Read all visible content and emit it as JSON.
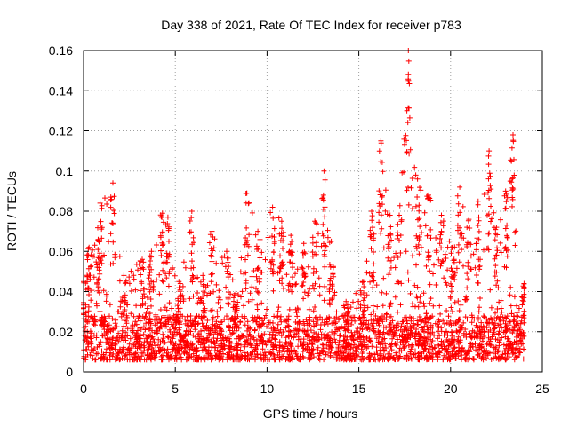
{
  "chart_data": {
    "type": "scatter",
    "title": "Day 338 of 2021, Rate Of TEC Index for receiver p783",
    "xlabel": "GPS time / hours",
    "ylabel": "ROTI / TECUs",
    "xlim": [
      0,
      25
    ],
    "ylim": [
      0,
      0.16
    ],
    "xticks": [
      "0",
      "5",
      "10",
      "15",
      "20",
      "25"
    ],
    "yticks": [
      "0",
      "0.02",
      "0.04",
      "0.06",
      "0.08",
      "0.1",
      "0.12",
      "0.14",
      "0.16"
    ],
    "grid": true,
    "marker": "+",
    "series_color": "#ff0000",
    "data_extent": {
      "x_min": 0.0,
      "x_max": 24.0
    },
    "background_level": {
      "typical_min": 0.006,
      "typical_max": 0.028
    },
    "peak_envelope": [
      {
        "x": 0.0,
        "y": 0.045
      },
      {
        "x": 0.3,
        "y": 0.062
      },
      {
        "x": 0.8,
        "y": 0.066
      },
      {
        "x": 0.9,
        "y": 0.084
      },
      {
        "x": 1.6,
        "y": 0.094
      },
      {
        "x": 2.2,
        "y": 0.048
      },
      {
        "x": 3.2,
        "y": 0.056
      },
      {
        "x": 3.7,
        "y": 0.06
      },
      {
        "x": 4.3,
        "y": 0.079
      },
      {
        "x": 4.6,
        "y": 0.077
      },
      {
        "x": 5.2,
        "y": 0.045
      },
      {
        "x": 5.9,
        "y": 0.08
      },
      {
        "x": 6.5,
        "y": 0.048
      },
      {
        "x": 7.0,
        "y": 0.07
      },
      {
        "x": 7.8,
        "y": 0.06
      },
      {
        "x": 8.3,
        "y": 0.039
      },
      {
        "x": 8.9,
        "y": 0.089
      },
      {
        "x": 9.5,
        "y": 0.07
      },
      {
        "x": 10.3,
        "y": 0.082
      },
      {
        "x": 10.8,
        "y": 0.075
      },
      {
        "x": 11.3,
        "y": 0.068
      },
      {
        "x": 12.0,
        "y": 0.064
      },
      {
        "x": 12.6,
        "y": 0.075
      },
      {
        "x": 13.1,
        "y": 0.1
      },
      {
        "x": 13.5,
        "y": 0.065
      },
      {
        "x": 14.3,
        "y": 0.035
      },
      {
        "x": 15.2,
        "y": 0.045
      },
      {
        "x": 15.7,
        "y": 0.08
      },
      {
        "x": 16.2,
        "y": 0.115
      },
      {
        "x": 16.7,
        "y": 0.078
      },
      {
        "x": 17.2,
        "y": 0.078
      },
      {
        "x": 17.7,
        "y": 0.16
      },
      {
        "x": 18.2,
        "y": 0.096
      },
      {
        "x": 18.8,
        "y": 0.088
      },
      {
        "x": 19.5,
        "y": 0.078
      },
      {
        "x": 20.1,
        "y": 0.062
      },
      {
        "x": 20.5,
        "y": 0.092
      },
      {
        "x": 21.0,
        "y": 0.076
      },
      {
        "x": 21.5,
        "y": 0.085
      },
      {
        "x": 22.1,
        "y": 0.11
      },
      {
        "x": 22.5,
        "y": 0.072
      },
      {
        "x": 23.0,
        "y": 0.09
      },
      {
        "x": 23.4,
        "y": 0.118
      },
      {
        "x": 24.0,
        "y": 0.044
      }
    ]
  }
}
